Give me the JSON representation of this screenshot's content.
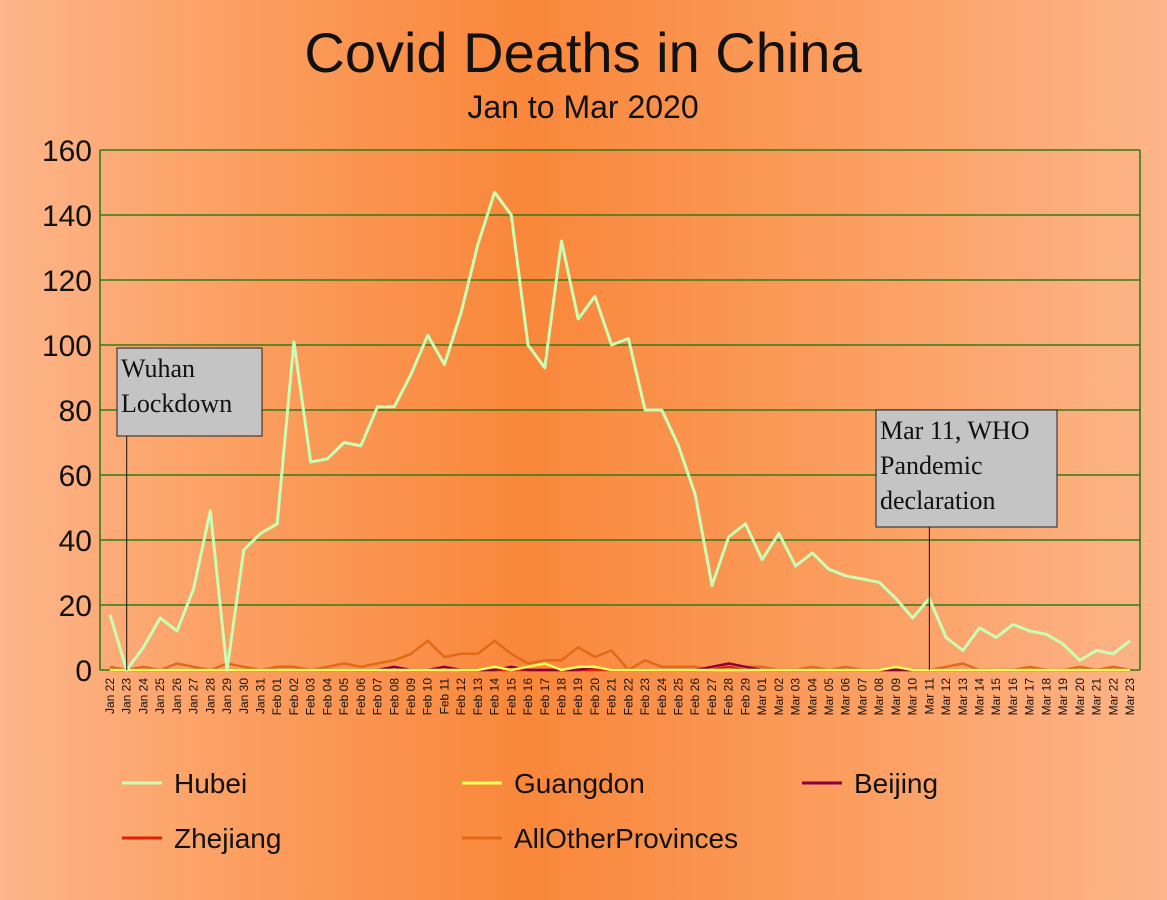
{
  "chart_data": {
    "type": "line",
    "title": "Covid Deaths in China",
    "subtitle": "Jan to Mar 2020",
    "xlabel": "",
    "ylabel": "",
    "ylim": [
      0,
      160
    ],
    "yticks": [
      "0",
      "20",
      "40",
      "60",
      "80",
      "100",
      "120",
      "140",
      "160"
    ],
    "grid": true,
    "legend_position": "bottom",
    "categories": [
      "Jan 22",
      "Jan 23",
      "Jan 24",
      "Jan 25",
      "Jan 26",
      "Jan 27",
      "Jan 28",
      "Jan 29",
      "Jan 30",
      "Jan 31",
      "Feb 01",
      "Feb 02",
      "Feb 03",
      "Feb 04",
      "Feb 05",
      "Feb 06",
      "Feb 07",
      "Feb 08",
      "Feb 09",
      "Feb 10",
      "Feb 11",
      "Feb 12",
      "Feb 13",
      "Feb 14",
      "Feb 15",
      "Feb 16",
      "Feb 17",
      "Feb 18",
      "Feb 19",
      "Feb 20",
      "Feb 21",
      "Feb 22",
      "Feb 23",
      "Feb 24",
      "Feb 25",
      "Feb 26",
      "Feb 27",
      "Feb 28",
      "Feb 29",
      "Mar 01",
      "Mar 02",
      "Mar 03",
      "Mar 04",
      "Mar 05",
      "Mar 06",
      "Mar 07",
      "Mar 08",
      "Mar 09",
      "Mar 10",
      "Mar 11",
      "Mar 12",
      "Mar 13",
      "Mar 14",
      "Mar 15",
      "Mar 16",
      "Mar 17",
      "Mar 18",
      "Mar 19",
      "Mar 20",
      "Mar 21",
      "Mar 22",
      "Mar 23"
    ],
    "series": [
      {
        "name": "Hubei",
        "color": "#c8ffb4",
        "values": [
          17,
          0,
          7,
          16,
          12,
          25,
          49,
          0,
          37,
          42,
          45,
          101,
          64,
          65,
          70,
          69,
          81,
          81,
          91,
          103,
          94,
          110,
          131,
          147,
          140,
          100,
          93,
          132,
          108,
          115,
          100,
          102,
          80,
          80,
          69,
          54,
          26,
          41,
          45,
          34,
          42,
          32,
          36,
          31,
          29,
          28,
          27,
          22,
          16,
          22,
          10,
          6,
          13,
          10,
          14,
          12,
          11,
          8,
          3,
          6,
          5,
          9
        ]
      },
      {
        "name": "Guangdon",
        "color": "#ffff55",
        "values": [
          0,
          0,
          0,
          0,
          0,
          0,
          0,
          0,
          0,
          0,
          0,
          0,
          0,
          0,
          0,
          0,
          0,
          0,
          0,
          0,
          0,
          0,
          0,
          1,
          0,
          1,
          2,
          0,
          1,
          1,
          0,
          0,
          0,
          0,
          0,
          0,
          0,
          0,
          0,
          0,
          0,
          0,
          0,
          0,
          0,
          0,
          0,
          1,
          0,
          0,
          0,
          0,
          0,
          0,
          0,
          0,
          0,
          0,
          0,
          0,
          0,
          0
        ]
      },
      {
        "name": "Beijing",
        "color": "#8b0040",
        "values": [
          0,
          0,
          0,
          0,
          0,
          0,
          0,
          0,
          0,
          0,
          0,
          0,
          0,
          0,
          0,
          0,
          0,
          1,
          0,
          0,
          1,
          0,
          0,
          0,
          1,
          0,
          0,
          0,
          0,
          1,
          0,
          0,
          0,
          0,
          0,
          0,
          1,
          2,
          1,
          0,
          0,
          0,
          0,
          0,
          0,
          0,
          0,
          0,
          0,
          0,
          0,
          0,
          0,
          0,
          0,
          0,
          0,
          0,
          0,
          0,
          0,
          0
        ]
      },
      {
        "name": "Zhejiang",
        "color": "#e02000",
        "values": [
          0,
          0,
          0,
          0,
          0,
          0,
          0,
          0,
          0,
          0,
          0,
          0,
          0,
          0,
          0,
          0,
          0,
          0,
          0,
          0,
          0,
          0,
          0,
          0,
          0,
          0,
          0,
          0,
          0,
          0,
          0,
          0,
          0,
          0,
          0,
          0,
          0,
          1,
          0,
          0,
          0,
          0,
          0,
          0,
          0,
          0,
          0,
          0,
          0,
          0,
          0,
          0,
          0,
          0,
          0,
          0,
          0,
          0,
          0,
          0,
          0,
          0
        ]
      },
      {
        "name": "AllOtherProvinces",
        "color": "#e06a1a",
        "values": [
          1,
          0,
          1,
          0,
          2,
          1,
          0,
          2,
          1,
          0,
          1,
          1,
          0,
          1,
          2,
          1,
          2,
          3,
          5,
          9,
          4,
          5,
          5,
          9,
          5,
          2,
          3,
          3,
          7,
          4,
          6,
          0,
          3,
          1,
          1,
          1,
          0,
          2,
          1,
          1,
          0,
          0,
          1,
          0,
          1,
          0,
          0,
          1,
          0,
          0,
          1,
          2,
          0,
          0,
          0,
          1,
          0,
          0,
          1,
          0,
          1,
          0
        ]
      }
    ],
    "annotations": [
      {
        "category": "Jan 23",
        "lines": [
          "Wuhan",
          "Lockdown"
        ]
      },
      {
        "category": "Mar 11",
        "lines": [
          "Mar 11, WHO",
          "Pandemic",
          "declaration"
        ]
      }
    ]
  }
}
